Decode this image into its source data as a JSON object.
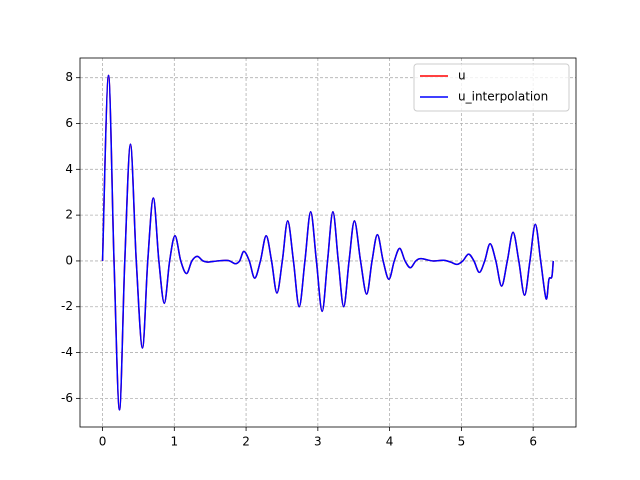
{
  "chart_data": {
    "type": "line",
    "x": [
      0,
      0.083,
      0.16,
      0.236,
      0.31,
      0.389,
      0.47,
      0.556,
      0.63,
      0.708,
      0.785,
      0.861,
      0.935,
      1.01,
      1.09,
      1.17,
      1.245,
      1.32,
      1.4,
      1.47,
      1.6,
      1.75,
      1.85,
      1.91,
      1.97,
      2.045,
      2.12,
      2.2,
      2.28,
      2.355,
      2.43,
      2.505,
      2.58,
      2.66,
      2.74,
      2.82,
      2.9,
      2.98,
      3.06,
      3.135,
      3.21,
      3.285,
      3.36,
      3.435,
      3.51,
      3.595,
      3.68,
      3.755,
      3.83,
      3.91,
      3.99,
      4.065,
      4.14,
      4.215,
      4.29,
      4.365,
      4.44,
      4.6,
      4.75,
      4.85,
      4.94,
      5.02,
      5.1,
      5.175,
      5.25,
      5.325,
      5.4,
      5.48,
      5.56,
      5.64,
      5.72,
      5.8,
      5.88,
      5.955,
      6.03,
      6.105,
      6.18,
      6.22,
      6.26,
      6.28
    ],
    "series": [
      {
        "name": "u",
        "color": "#ff0000",
        "values": [
          0,
          8.1,
          0,
          -6.5,
          0,
          5.1,
          0,
          -3.8,
          0,
          2.75,
          0,
          -1.85,
          0,
          1.1,
          0,
          -0.55,
          0,
          0.2,
          0,
          -0.05,
          0,
          0.02,
          -0.12,
          0,
          0.42,
          0,
          -0.75,
          0,
          1.1,
          0,
          -1.4,
          0,
          1.75,
          0,
          -2.0,
          0,
          2.15,
          0,
          -2.2,
          0,
          2.15,
          0,
          -2.0,
          0,
          1.75,
          0,
          -1.45,
          0,
          1.15,
          0,
          -0.8,
          0,
          0.55,
          0,
          -0.3,
          0,
          0.1,
          0,
          0.03,
          -0.05,
          -0.15,
          0,
          0.3,
          0,
          -0.5,
          0,
          0.75,
          0,
          -1.1,
          0,
          1.25,
          0,
          -1.5,
          0,
          1.6,
          0,
          -1.65,
          -0.8,
          -0.7,
          0
        ]
      },
      {
        "name": "u_interpolation",
        "color": "#0000ff",
        "values": [
          0,
          8.1,
          0,
          -6.5,
          0,
          5.1,
          0,
          -3.8,
          0,
          2.75,
          0,
          -1.85,
          0,
          1.1,
          0,
          -0.55,
          0,
          0.2,
          0,
          -0.05,
          0,
          0.02,
          -0.12,
          0,
          0.42,
          0,
          -0.75,
          0,
          1.1,
          0,
          -1.4,
          0,
          1.75,
          0,
          -2.0,
          0,
          2.15,
          0,
          -2.2,
          0,
          2.15,
          0,
          -2.0,
          0,
          1.75,
          0,
          -1.45,
          0,
          1.15,
          0,
          -0.8,
          0,
          0.55,
          0,
          -0.3,
          0,
          0.1,
          0,
          0.03,
          -0.05,
          -0.15,
          0,
          0.3,
          0,
          -0.5,
          0,
          0.75,
          0,
          -1.1,
          0,
          1.25,
          0,
          -1.5,
          0,
          1.6,
          0,
          -1.65,
          -0.8,
          -0.7,
          0
        ]
      }
    ],
    "xlim": [
      -0.314,
      6.597
    ],
    "xticks": [
      0,
      1,
      2,
      3,
      4,
      5,
      6
    ],
    "ylim": [
      -7.25,
      8.86
    ],
    "yticks": [
      -6,
      -4,
      -2,
      0,
      2,
      4,
      6,
      8
    ],
    "grid": true,
    "legend": "upper right"
  }
}
